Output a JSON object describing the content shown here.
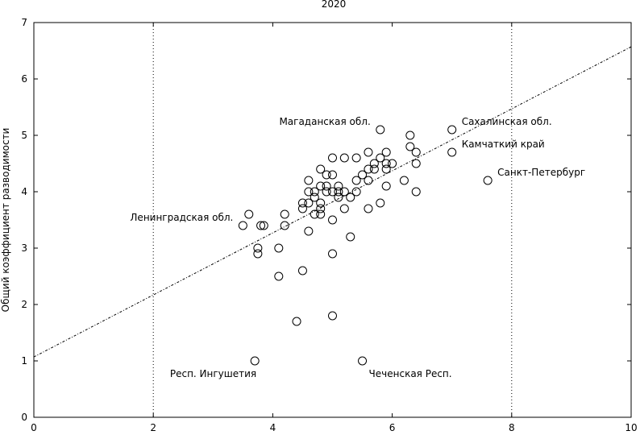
{
  "chart_data": {
    "type": "scatter",
    "title": "2020",
    "xlabel": "",
    "ylabel": "Общий коэффициент разводимости",
    "xlim": [
      0,
      10
    ],
    "ylim": [
      0,
      7
    ],
    "xticks": [
      "0",
      "2",
      "4",
      "6",
      "8",
      "10"
    ],
    "yticks": [
      "0",
      "1",
      "2",
      "3",
      "4",
      "5",
      "6",
      "7"
    ],
    "grid": false,
    "vertical_reference_lines": [
      2,
      8
    ],
    "trend_line": {
      "x": [
        0,
        10
      ],
      "y": [
        1.07,
        6.57
      ]
    },
    "colors": {
      "marker": "#000000",
      "axis": "#000000",
      "trend": "#000000"
    },
    "points": [
      {
        "x": 3.5,
        "y": 3.4
      },
      {
        "x": 3.6,
        "y": 3.6
      },
      {
        "x": 3.7,
        "y": 1.0
      },
      {
        "x": 3.75,
        "y": 3.0
      },
      {
        "x": 3.75,
        "y": 2.9
      },
      {
        "x": 3.8,
        "y": 3.4
      },
      {
        "x": 3.85,
        "y": 3.4
      },
      {
        "x": 4.1,
        "y": 3.0
      },
      {
        "x": 4.1,
        "y": 2.5
      },
      {
        "x": 4.2,
        "y": 3.6
      },
      {
        "x": 4.2,
        "y": 3.4
      },
      {
        "x": 4.4,
        "y": 1.7
      },
      {
        "x": 4.5,
        "y": 3.8
      },
      {
        "x": 4.5,
        "y": 3.7
      },
      {
        "x": 4.5,
        "y": 2.6
      },
      {
        "x": 4.6,
        "y": 4.2
      },
      {
        "x": 4.6,
        "y": 4.0
      },
      {
        "x": 4.6,
        "y": 3.8
      },
      {
        "x": 4.6,
        "y": 3.3
      },
      {
        "x": 4.7,
        "y": 4.0
      },
      {
        "x": 4.7,
        "y": 3.9
      },
      {
        "x": 4.7,
        "y": 3.6
      },
      {
        "x": 4.8,
        "y": 4.4
      },
      {
        "x": 4.8,
        "y": 4.1
      },
      {
        "x": 4.8,
        "y": 3.8
      },
      {
        "x": 4.8,
        "y": 3.7
      },
      {
        "x": 4.8,
        "y": 3.6
      },
      {
        "x": 4.9,
        "y": 4.3
      },
      {
        "x": 4.9,
        "y": 4.1
      },
      {
        "x": 4.9,
        "y": 4.0
      },
      {
        "x": 5.0,
        "y": 4.6
      },
      {
        "x": 5.0,
        "y": 4.3
      },
      {
        "x": 5.0,
        "y": 4.0
      },
      {
        "x": 5.0,
        "y": 3.5
      },
      {
        "x": 5.0,
        "y": 2.9
      },
      {
        "x": 5.0,
        "y": 1.8
      },
      {
        "x": 5.1,
        "y": 4.1
      },
      {
        "x": 5.1,
        "y": 4.0
      },
      {
        "x": 5.1,
        "y": 3.9
      },
      {
        "x": 5.2,
        "y": 4.6
      },
      {
        "x": 5.2,
        "y": 4.0
      },
      {
        "x": 5.2,
        "y": 3.7
      },
      {
        "x": 5.3,
        "y": 3.9
      },
      {
        "x": 5.3,
        "y": 3.2
      },
      {
        "x": 5.4,
        "y": 4.6
      },
      {
        "x": 5.4,
        "y": 4.2
      },
      {
        "x": 5.4,
        "y": 4.0
      },
      {
        "x": 5.5,
        "y": 4.3
      },
      {
        "x": 5.5,
        "y": 1.0
      },
      {
        "x": 5.6,
        "y": 4.7
      },
      {
        "x": 5.6,
        "y": 4.4
      },
      {
        "x": 5.6,
        "y": 4.2
      },
      {
        "x": 5.6,
        "y": 3.7
      },
      {
        "x": 5.7,
        "y": 4.5
      },
      {
        "x": 5.7,
        "y": 4.4
      },
      {
        "x": 5.8,
        "y": 5.1
      },
      {
        "x": 5.8,
        "y": 4.6
      },
      {
        "x": 5.8,
        "y": 3.8
      },
      {
        "x": 5.9,
        "y": 4.7
      },
      {
        "x": 5.9,
        "y": 4.5
      },
      {
        "x": 5.9,
        "y": 4.4
      },
      {
        "x": 5.9,
        "y": 4.1
      },
      {
        "x": 6.0,
        "y": 4.5
      },
      {
        "x": 6.2,
        "y": 4.2
      },
      {
        "x": 6.3,
        "y": 5.0
      },
      {
        "x": 6.3,
        "y": 4.8
      },
      {
        "x": 6.4,
        "y": 4.7
      },
      {
        "x": 6.4,
        "y": 4.5
      },
      {
        "x": 6.4,
        "y": 4.0
      },
      {
        "x": 7.0,
        "y": 5.1
      },
      {
        "x": 7.0,
        "y": 4.7
      },
      {
        "x": 7.6,
        "y": 4.2
      }
    ],
    "annotations": [
      {
        "text": "Магаданская обл.",
        "x": 5.8,
        "y": 5.1,
        "anchor": "end"
      },
      {
        "text": "Сахалинская обл.",
        "x": 7.0,
        "y": 5.1,
        "anchor": "start"
      },
      {
        "text": "Камчаткий край",
        "x": 7.0,
        "y": 4.7,
        "anchor": "start"
      },
      {
        "text": "Санкт-Петербург",
        "x": 7.6,
        "y": 4.2,
        "anchor": "start"
      },
      {
        "text": "Ленинградская обл.",
        "x": 3.5,
        "y": 3.4,
        "anchor": "end"
      },
      {
        "text": "Респ. Ингушетия",
        "x": 3.7,
        "y": 1.0,
        "anchor": "end"
      },
      {
        "text": "Чеченская Респ.",
        "x": 5.5,
        "y": 1.0,
        "anchor": "start"
      }
    ]
  }
}
